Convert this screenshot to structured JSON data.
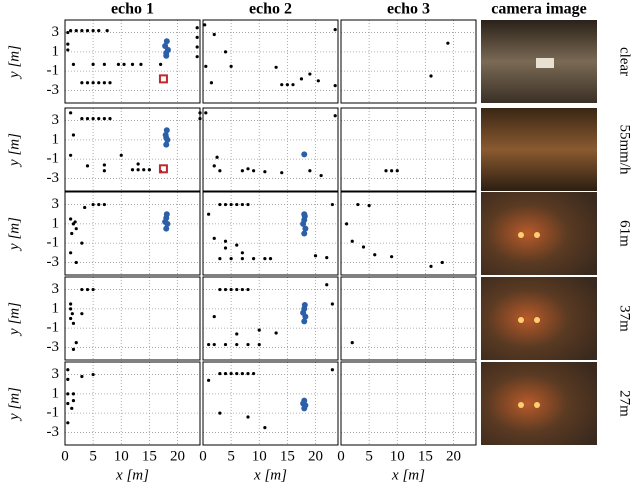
{
  "columns": [
    "echo 1",
    "echo 2",
    "echo 3",
    "camera image"
  ],
  "rows": [
    "clear",
    "55mm/h",
    "61m",
    "37m",
    "27m"
  ],
  "chart_data": [
    {
      "type": "scatter",
      "ylabel": "y [m]",
      "xlim": [
        0,
        24
      ],
      "ylim": [
        -4.3,
        4.3
      ],
      "xticks": [
        0,
        5,
        10,
        15,
        20
      ],
      "yticks": [
        3,
        1,
        -1,
        -3
      ],
      "grid": true,
      "series": [
        {
          "color": "#000000",
          "x": [
            0.5,
            1,
            2,
            3,
            4,
            5,
            6,
            7.5,
            0.5,
            0.5,
            1.5,
            5,
            7,
            9.5,
            10.5,
            12,
            13.5,
            17,
            3,
            4,
            5,
            6,
            7,
            8,
            23.5,
            23.5,
            23.5,
            23.5
          ],
          "y": [
            3.0,
            3.2,
            3.2,
            3.2,
            3.2,
            3.2,
            3.2,
            3.2,
            1.8,
            1.2,
            -0.3,
            -0.3,
            -0.3,
            -0.3,
            -0.3,
            -0.3,
            -0.3,
            -0.3,
            -2.2,
            -2.2,
            -2.2,
            -2.2,
            -2.2,
            -2.2,
            3.5,
            2.5,
            1.5,
            0.5
          ]
        },
        {
          "color": "#2b5fa8",
          "x": [
            18,
            18.3,
            17.8,
            18.1,
            18
          ],
          "y": [
            0.6,
            1.2,
            1.6,
            2.1,
            0.9
          ]
        },
        {
          "color": "#c0282d",
          "marker": "square",
          "x": [
            17.5
          ],
          "y": [
            -1.8
          ]
        }
      ]
    },
    {
      "type": "scatter",
      "xlim": [
        0,
        24
      ],
      "ylim": [
        -4.3,
        4.3
      ],
      "xticks": [
        0,
        5,
        10,
        15,
        20
      ],
      "yticks": [
        3,
        1,
        -1,
        -3
      ],
      "grid": true,
      "series": [
        {
          "color": "#000000",
          "x": [
            0.3,
            0.5,
            1.5,
            5,
            13,
            14,
            15,
            16,
            17.5,
            19,
            20.5,
            23.5,
            23.5,
            2,
            4
          ],
          "y": [
            3.8,
            -0.5,
            -2.2,
            -0.5,
            -0.6,
            -2.4,
            -2.4,
            -2.4,
            -1.8,
            -1.3,
            -2.0,
            3.3,
            -2.5,
            2.8,
            1
          ]
        }
      ]
    },
    {
      "type": "scatter",
      "xlim": [
        0,
        24
      ],
      "ylim": [
        -4.3,
        4.3
      ],
      "xticks": [
        0,
        5,
        10,
        15,
        20
      ],
      "yticks": [
        3,
        1,
        -1,
        -3
      ],
      "grid": true,
      "series": [
        {
          "color": "#000000",
          "x": [
            16,
            19
          ],
          "y": [
            -1.5,
            1.9
          ]
        }
      ]
    },
    {
      "type": "scatter",
      "ylabel": "y [m]",
      "xlim": [
        0,
        24
      ],
      "ylim": [
        -4.3,
        4.3
      ],
      "xticks": [
        0,
        5,
        10,
        15,
        20
      ],
      "yticks": [
        3,
        1,
        -1,
        -3
      ],
      "grid": true,
      "series": [
        {
          "color": "#000000",
          "x": [
            3,
            4,
            5,
            6,
            7,
            8,
            1,
            1.5,
            1,
            4,
            7,
            7,
            10,
            13,
            12,
            13,
            14,
            15,
            17,
            24,
            24
          ],
          "y": [
            3.2,
            3.2,
            3.2,
            3.2,
            3.2,
            3.2,
            3.8,
            1.5,
            -0.6,
            -1.7,
            -1.6,
            -2.2,
            -0.6,
            -1.5,
            -2.1,
            -2.1,
            -2.1,
            -2.1,
            -2.3,
            3.8,
            3.2
          ]
        },
        {
          "color": "#2b5fa8",
          "x": [
            18,
            18.2,
            17.9,
            18.1,
            18
          ],
          "y": [
            0.5,
            1,
            1.5,
            2,
            1.2
          ]
        },
        {
          "color": "#c0282d",
          "marker": "square",
          "x": [
            17.5
          ],
          "y": [
            -2
          ]
        }
      ]
    },
    {
      "type": "scatter",
      "xlim": [
        0,
        24
      ],
      "ylim": [
        -4.3,
        4.3
      ],
      "xticks": [
        0,
        5,
        10,
        15,
        20
      ],
      "yticks": [
        3,
        1,
        -1,
        -3
      ],
      "grid": true,
      "series": [
        {
          "color": "#000000",
          "x": [
            0.5,
            2,
            2.5,
            3,
            7,
            8,
            9,
            11,
            14,
            19,
            21,
            23.5
          ],
          "y": [
            3.8,
            -1.7,
            -0.8,
            -2.2,
            -2.2,
            -2,
            -2.2,
            -2.3,
            -2.4,
            -2.2,
            -2.7,
            3.5
          ]
        },
        {
          "color": "#2b5fa8",
          "x": [
            18
          ],
          "y": [
            -0.5
          ]
        }
      ]
    },
    {
      "type": "scatter",
      "xlim": [
        0,
        24
      ],
      "ylim": [
        -4.3,
        4.3
      ],
      "xticks": [
        0,
        5,
        10,
        15,
        20
      ],
      "yticks": [
        3,
        1,
        -1,
        -3
      ],
      "grid": true,
      "series": [
        {
          "color": "#000000",
          "x": [
            8,
            9,
            10
          ],
          "y": [
            -2.2,
            -2.2,
            -2.2
          ]
        }
      ]
    },
    {
      "type": "scatter",
      "ylabel": "y [m]",
      "xlim": [
        0,
        24
      ],
      "ylim": [
        -4.3,
        4.3
      ],
      "xticks": [
        0,
        5,
        10,
        15,
        20
      ],
      "yticks": [
        3,
        1,
        -1,
        -3
      ],
      "grid": true,
      "series": [
        {
          "color": "#000000",
          "x": [
            1,
            1.5,
            2,
            1.2,
            1.8,
            5,
            6,
            7,
            3.5,
            1,
            2,
            3
          ],
          "y": [
            1.5,
            1,
            0.5,
            0,
            1.2,
            3,
            3,
            3,
            2.7,
            -2,
            -3,
            -1
          ]
        },
        {
          "color": "#2b5fa8",
          "x": [
            18,
            18.2,
            17.8,
            18,
            18.1
          ],
          "y": [
            0.5,
            1,
            1.2,
            1.6,
            2
          ]
        }
      ]
    },
    {
      "type": "scatter",
      "xlim": [
        0,
        24
      ],
      "ylim": [
        -4.3,
        4.3
      ],
      "xticks": [
        0,
        5,
        10,
        15,
        20
      ],
      "yticks": [
        3,
        1,
        -1,
        -3
      ],
      "grid": true,
      "series": [
        {
          "color": "#000000",
          "x": [
            3,
            4,
            5,
            6,
            7,
            8,
            3,
            5,
            7,
            9,
            11,
            12,
            1,
            2,
            4,
            4,
            6,
            7,
            20,
            22,
            23
          ],
          "y": [
            3,
            3,
            3,
            3,
            3,
            3,
            -2.6,
            -2.6,
            -2.6,
            -2.6,
            -2.6,
            -2.6,
            2,
            -0.5,
            -0.8,
            -1.5,
            -1.2,
            -2,
            -2.3,
            -2.5,
            3
          ]
        },
        {
          "color": "#2b5fa8",
          "x": [
            18,
            18.2,
            17.8,
            18,
            18.1,
            18
          ],
          "y": [
            0,
            0.5,
            1,
            1.4,
            1.8,
            2
          ]
        }
      ]
    },
    {
      "type": "scatter",
      "xlim": [
        0,
        24
      ],
      "ylim": [
        -4.3,
        4.3
      ],
      "xticks": [
        0,
        5,
        10,
        15,
        20
      ],
      "yticks": [
        3,
        1,
        -1,
        -3
      ],
      "grid": true,
      "series": [
        {
          "color": "#000000",
          "x": [
            3,
            5,
            1,
            2,
            4,
            6,
            9,
            16,
            18
          ],
          "y": [
            3,
            2.9,
            1,
            -0.8,
            -1.4,
            -2.2,
            -2.4,
            -3.4,
            -3.0
          ]
        }
      ]
    },
    {
      "type": "scatter",
      "ylabel": "y [m]",
      "xlim": [
        0,
        24
      ],
      "ylim": [
        -4.3,
        4.3
      ],
      "xticks": [
        0,
        5,
        10,
        15,
        20
      ],
      "yticks": [
        3,
        1,
        -1,
        -3
      ],
      "grid": true,
      "series": [
        {
          "color": "#000000",
          "x": [
            3,
            4,
            5,
            1,
            1,
            1.3,
            1,
            1.5,
            2,
            1.5,
            3
          ],
          "y": [
            3,
            3,
            3,
            1.5,
            1,
            0.5,
            0,
            -0.5,
            -2.5,
            -3.2,
            0.5
          ]
        },
        {
          "color": "#2b5fa8",
          "x": [],
          "y": []
        }
      ]
    },
    {
      "type": "scatter",
      "xlim": [
        0,
        24
      ],
      "ylim": [
        -4.3,
        4.3
      ],
      "xticks": [
        0,
        5,
        10,
        15,
        20
      ],
      "yticks": [
        3,
        1,
        -1,
        -3
      ],
      "grid": true,
      "series": [
        {
          "color": "#000000",
          "x": [
            3,
            4,
            5,
            6,
            7,
            8,
            1,
            2,
            4,
            6,
            8,
            10,
            2,
            6,
            10,
            13,
            22,
            23
          ],
          "y": [
            3,
            3,
            3,
            3,
            3,
            3,
            -2.7,
            -2.7,
            -2.7,
            -2.7,
            -2.7,
            -2.7,
            0.2,
            -1.6,
            -1.2,
            -1.5,
            3.5,
            1.5
          ]
        },
        {
          "color": "#2b5fa8",
          "x": [
            18,
            18.2,
            17.8,
            18,
            18.1
          ],
          "y": [
            -0.3,
            0.2,
            0.6,
            1,
            1.4
          ]
        }
      ]
    },
    {
      "type": "scatter",
      "xlim": [
        0,
        24
      ],
      "ylim": [
        -4.3,
        4.3
      ],
      "xticks": [
        0,
        5,
        10,
        15,
        20
      ],
      "yticks": [
        3,
        1,
        -1,
        -3
      ],
      "grid": true,
      "series": [
        {
          "color": "#000000",
          "x": [
            2
          ],
          "y": [
            -2.5
          ]
        }
      ]
    },
    {
      "type": "scatter",
      "ylabel": "y [m]",
      "xlabel": "x [m]",
      "xlim": [
        0,
        24
      ],
      "ylim": [
        -4.3,
        4.3
      ],
      "xticks": [
        0,
        5,
        10,
        15,
        20
      ],
      "yticks": [
        3,
        1,
        -1,
        -3
      ],
      "grid": true,
      "series": [
        {
          "color": "#000000",
          "x": [
            0.5,
            0.5,
            0.5,
            0.5,
            0.5,
            1.5,
            1.5,
            1.2,
            3,
            5
          ],
          "y": [
            3.5,
            2.5,
            1,
            0,
            -2,
            1,
            0.3,
            -0.5,
            2.8,
            3
          ]
        }
      ]
    },
    {
      "type": "scatter",
      "xlabel": "x [m]",
      "xlim": [
        0,
        24
      ],
      "ylim": [
        -4.3,
        4.3
      ],
      "xticks": [
        0,
        5,
        10,
        15,
        20
      ],
      "yticks": [
        3,
        1,
        -1,
        -3
      ],
      "grid": true,
      "series": [
        {
          "color": "#000000",
          "x": [
            3,
            4,
            5,
            6,
            7,
            8,
            9,
            1,
            3,
            8,
            11,
            23
          ],
          "y": [
            3.1,
            3.1,
            3.1,
            3.1,
            3.1,
            3.1,
            3.1,
            2.4,
            -1,
            -1.4,
            -2.5,
            3.5
          ]
        },
        {
          "color": "#2b5fa8",
          "x": [
            18,
            18.2,
            17.8,
            18
          ],
          "y": [
            -0.5,
            -0.2,
            0,
            0.3
          ]
        }
      ]
    },
    {
      "type": "scatter",
      "xlabel": "x [m]",
      "xlim": [
        0,
        24
      ],
      "ylim": [
        -4.3,
        4.3
      ],
      "xticks": [
        0,
        5,
        10,
        15,
        20
      ],
      "yticks": [
        3,
        1,
        -1,
        -3
      ],
      "grid": true,
      "series": [
        {
          "color": "#000000",
          "x": [],
          "y": []
        }
      ]
    }
  ]
}
